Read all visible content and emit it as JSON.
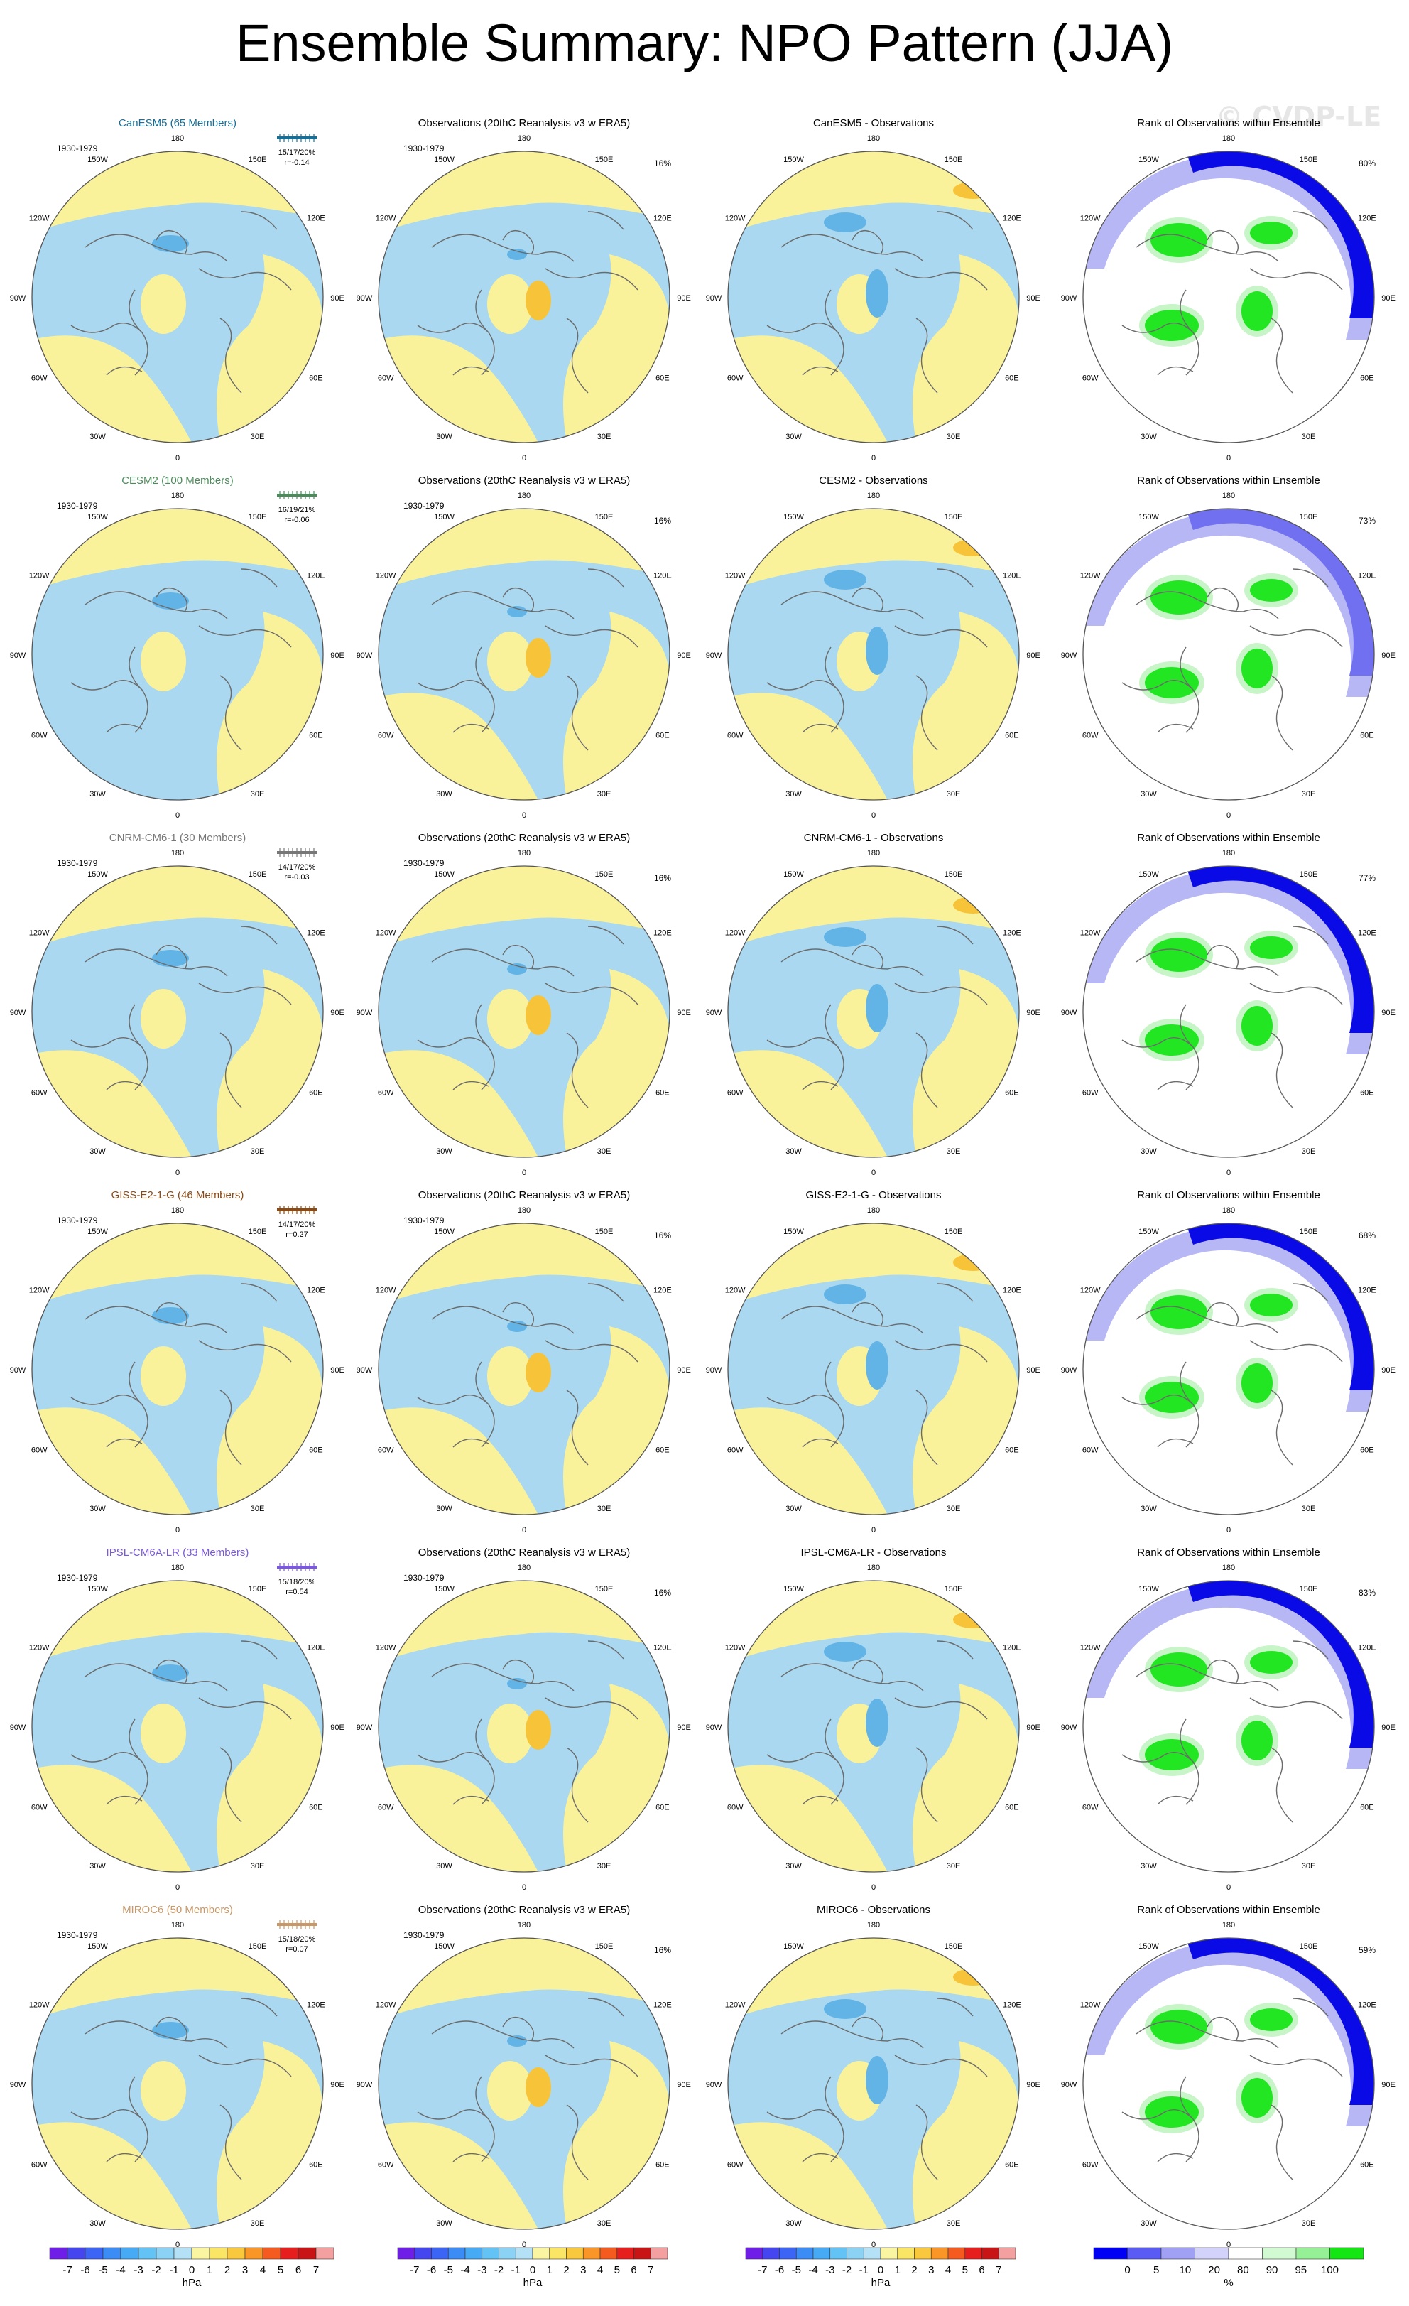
{
  "title": "Ensemble Summary: NPO Pattern (JJA)",
  "watermark": "© CVDP-LE",
  "colors": {
    "lightblue": "#a9d8f0",
    "midblue": "#63b4e6",
    "yellow": "#faf29b",
    "orange": "#f7c439",
    "coast": "#6b6b6b",
    "rank_blue": "#0a0ae6",
    "rank_lightblue": "#b7b7f5",
    "rank_green": "#22e622",
    "rank_lightgreen": "#c8f5c8"
  },
  "period": "1930-1979",
  "obs_title": "Observations (20thC Reanalysis v3 w ERA5)",
  "obs_pct": "16%",
  "rank_title": "Rank of Observations within Ensemble",
  "lon_labels": [
    "180",
    "150E",
    "120E",
    "90E",
    "60E",
    "30E",
    "0",
    "30W",
    "60W",
    "90W",
    "120W",
    "150W"
  ],
  "models": [
    {
      "name": "CanESM5 (65 Members)",
      "color": "#1a6e94",
      "stats": "15/17/20%",
      "r": "r=-0.14",
      "diff_title": "CanESM5 - Observations",
      "rank_pct": "80%"
    },
    {
      "name": "CESM2 (100 Members)",
      "color": "#4b8a5a",
      "stats": "16/19/21%",
      "r": "r=-0.06",
      "diff_title": "CESM2 - Observations",
      "rank_pct": "73%"
    },
    {
      "name": "CNRM-CM6-1 (30 Members)",
      "color": "#777777",
      "stats": "14/17/20%",
      "r": "r=-0.03",
      "diff_title": "CNRM-CM6-1 - Observations",
      "rank_pct": "77%"
    },
    {
      "name": "GISS-E2-1-G (46 Members)",
      "color": "#8b4a14",
      "stats": "14/17/20%",
      "r": "r=0.27",
      "diff_title": "GISS-E2-1-G - Observations",
      "rank_pct": "68%"
    },
    {
      "name": "IPSL-CM6A-LR (33 Members)",
      "color": "#7a5ad6",
      "stats": "15/18/20%",
      "r": "r=0.54",
      "diff_title": "IPSL-CM6A-LR - Observations",
      "rank_pct": "83%"
    },
    {
      "name": "MIROC6 (50 Members)",
      "color": "#c89868",
      "stats": "15/18/20%",
      "r": "r=0.07",
      "diff_title": "MIROC6 - Observations",
      "rank_pct": "59%"
    }
  ],
  "colorbar_hpa": {
    "labels": [
      "-7",
      "-6",
      "-5",
      "-4",
      "-3",
      "-2",
      "-1",
      "0",
      "1",
      "2",
      "3",
      "4",
      "5",
      "6",
      "7"
    ],
    "colors": [
      "#6e1ee6",
      "#4646f0",
      "#3c64f5",
      "#3c8cf5",
      "#46aaf5",
      "#64c3f5",
      "#8cd2f5",
      "#b4e1f5",
      "#faf5a0",
      "#fae664",
      "#fac83c",
      "#fa9628",
      "#f55a1e",
      "#e61e1e",
      "#c81414",
      "#f5a0a0"
    ],
    "unit": "hPa"
  },
  "colorbar_rank": {
    "labels": [
      "0",
      "5",
      "10",
      "20",
      "80",
      "90",
      "95",
      "100"
    ],
    "colors": [
      "#0000f5",
      "#5a5af5",
      "#a0a0f5",
      "#d2d2fa",
      "#ffffff",
      "#d2fad2",
      "#96f096",
      "#14e614"
    ],
    "unit": "%"
  },
  "chart_data": {
    "type": "heatmap",
    "title": "Ensemble Summary: NPO Pattern (JJA)",
    "panels_per_row": [
      "model pattern",
      "observations",
      "model - observations",
      "rank of observations within ensemble"
    ],
    "value_unit": "hPa",
    "value_range": [
      -7,
      7
    ],
    "rank_unit": "%",
    "rank_range": [
      0,
      100
    ],
    "rows": [
      {
        "model": "CanESM5",
        "members": 65,
        "pattern_corr": -0.14,
        "obs_rank_pct": 80
      },
      {
        "model": "CESM2",
        "members": 100,
        "pattern_corr": -0.06,
        "obs_rank_pct": 73
      },
      {
        "model": "CNRM-CM6-1",
        "members": 30,
        "pattern_corr": -0.03,
        "obs_rank_pct": 77
      },
      {
        "model": "GISS-E2-1-G",
        "members": 46,
        "pattern_corr": 0.27,
        "obs_rank_pct": 68
      },
      {
        "model": "IPSL-CM6A-LR",
        "members": 33,
        "pattern_corr": 0.54,
        "obs_rank_pct": 83
      },
      {
        "model": "MIROC6",
        "members": 50,
        "pattern_corr": 0.07,
        "obs_rank_pct": 59
      }
    ]
  }
}
